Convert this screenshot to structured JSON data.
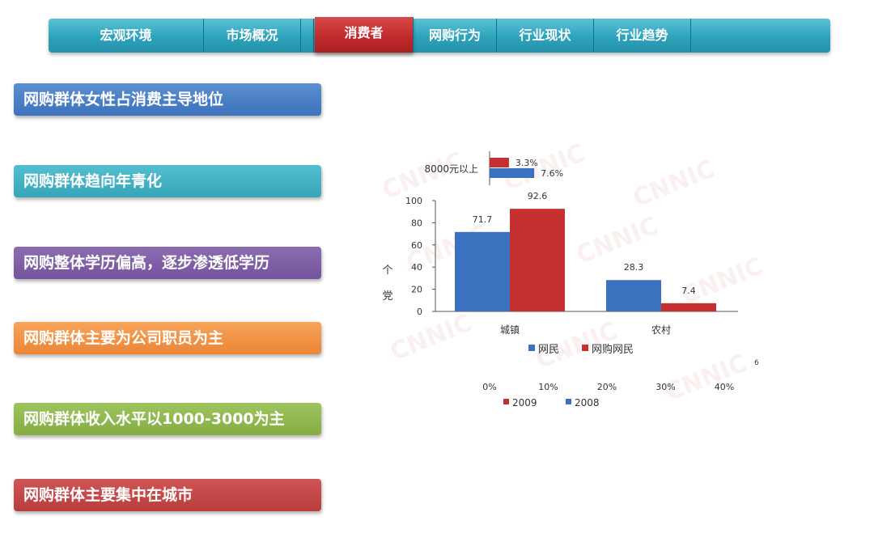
{
  "nav": {
    "items": [
      {
        "label": "宏观环境",
        "active": false
      },
      {
        "label": "市场概况",
        "active": false
      },
      {
        "label": "消费者",
        "active": true
      },
      {
        "label": "网购行为",
        "active": false
      },
      {
        "label": "行业现状",
        "active": false
      },
      {
        "label": "行业趋势",
        "active": false
      }
    ]
  },
  "tags": [
    "网购群体女性占消费主导地位",
    "网购群体趋向年青化",
    "网购整体学历偏高，逐步渗透低学历",
    "网购群体主要为公司职员为主",
    "网购群体收入水平以1000-3000为主",
    "网购群体主要集中在城市"
  ],
  "watermark": "CNNIC",
  "colors": {
    "blue": "#3b72c0",
    "red": "#c62f2f"
  },
  "chart_data": [
    {
      "type": "bar",
      "orientation": "vertical",
      "categories": [
        "城镇",
        "农村"
      ],
      "series": [
        {
          "name": "网民",
          "values": [
            71.7,
            28.3
          ],
          "color": "#3b72c0"
        },
        {
          "name": "网购网民",
          "values": [
            92.6,
            7.4
          ],
          "color": "#c62f2f"
        }
      ],
      "ylim": [
        0,
        100
      ],
      "yticks": [
        "0",
        "20",
        "40",
        "60",
        "80",
        "100"
      ],
      "ylabel": "个党",
      "legend_position": "bottom",
      "grid": false
    },
    {
      "type": "bar",
      "orientation": "horizontal",
      "categories": [
        "8000元以上"
      ],
      "series": [
        {
          "name": "2009",
          "values": [
            3.3
          ],
          "labels": [
            "3.3%"
          ],
          "color": "#c62f2f"
        },
        {
          "name": "2008",
          "values": [
            7.6
          ],
          "labels": [
            "7.6%"
          ],
          "color": "#3b72c0"
        }
      ],
      "xlim": [
        0,
        40
      ],
      "xticks": [
        "0%",
        "10%",
        "20%",
        "30%",
        "40%"
      ],
      "legend_position": "bottom",
      "grid": false
    }
  ],
  "stray_mark": "6"
}
